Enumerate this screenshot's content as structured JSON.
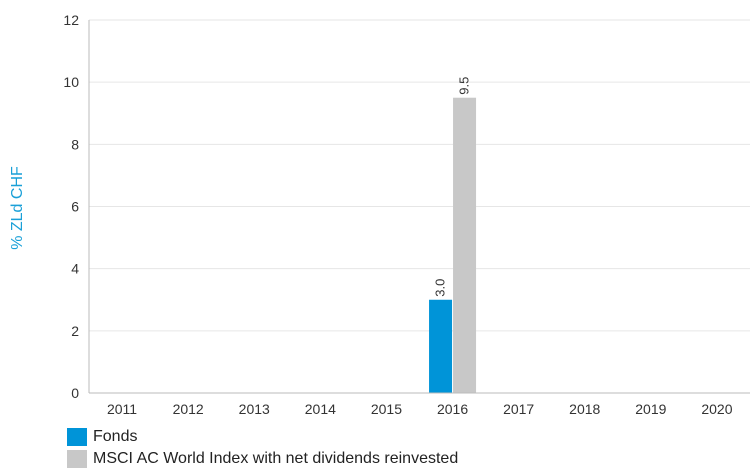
{
  "chart_data": {
    "type": "bar",
    "categories": [
      "2011",
      "2012",
      "2013",
      "2014",
      "2015",
      "2016",
      "2017",
      "2018",
      "2019",
      "2020"
    ],
    "series": [
      {
        "name": "Fonds",
        "color": "#0094d8",
        "values": [
          null,
          null,
          null,
          null,
          null,
          3.0,
          null,
          null,
          null,
          null
        ]
      },
      {
        "name": "MSCI AC World Index with net dividends reinvested",
        "color": "#c8c8c8",
        "values": [
          null,
          null,
          null,
          null,
          null,
          9.5,
          null,
          null,
          null,
          null
        ]
      }
    ],
    "ylabel": "% ZLd CHF",
    "ylim": [
      0,
      12
    ],
    "yticks": [
      0,
      2,
      4,
      6,
      8,
      10,
      12
    ],
    "grid": true,
    "legend": "bottom-left",
    "data_labels": true
  }
}
